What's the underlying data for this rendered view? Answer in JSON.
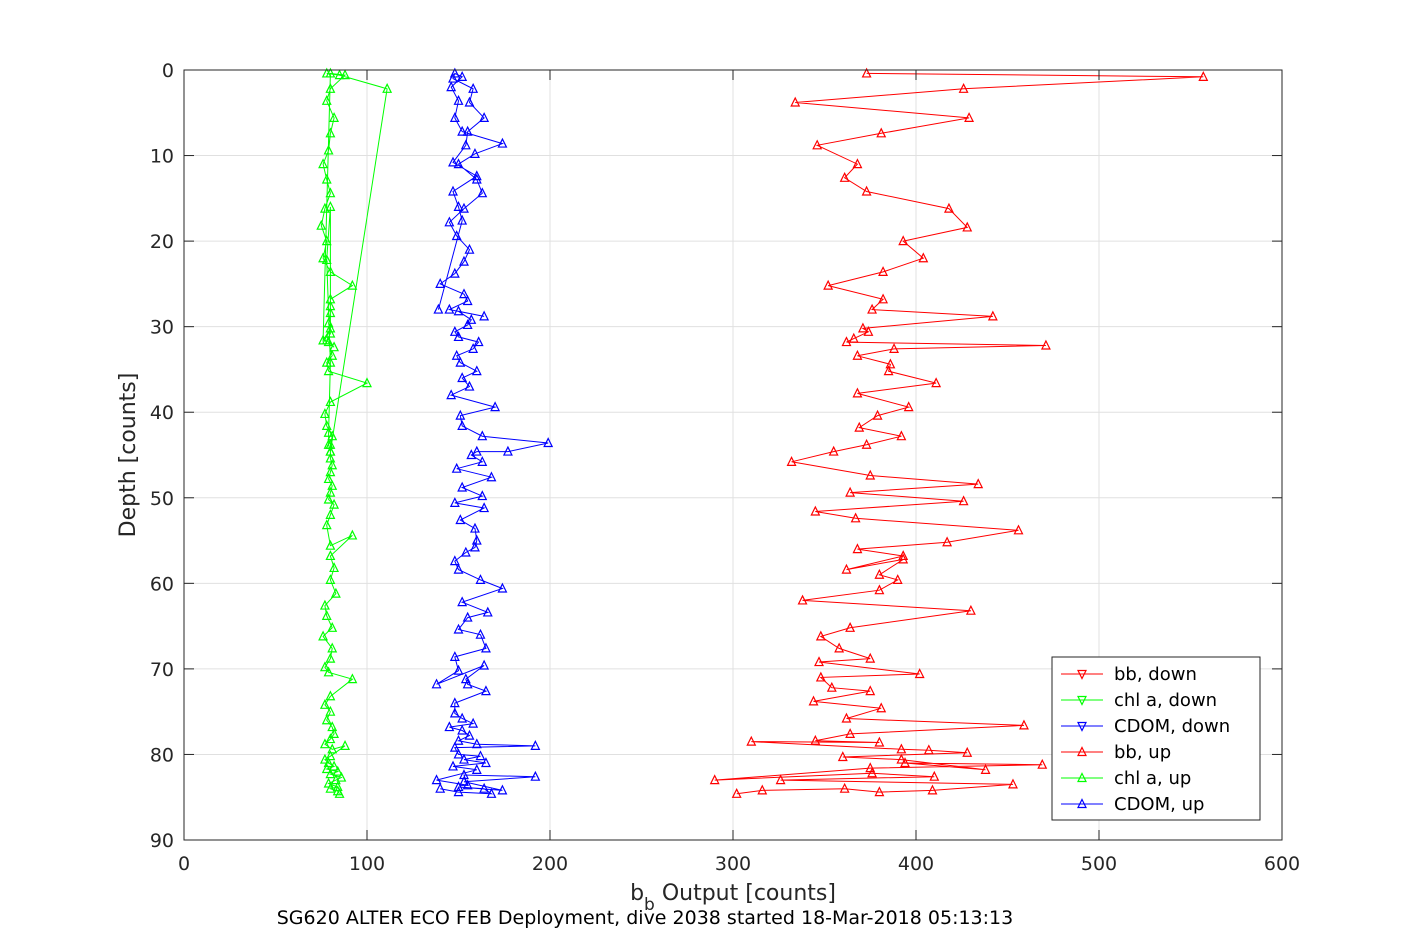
{
  "chart_data": {
    "type": "line",
    "title": "",
    "xlabel": "b_b Output [counts]",
    "xlabel_main": "b",
    "xlabel_sub": "b",
    "xlabel_rest": " Output [counts]",
    "ylabel": "Depth [counts]",
    "caption": "SG620 ALTER ECO FEB Deployment, dive 2038 started 18-Mar-2018 05:13:13",
    "xlim": [
      0,
      600
    ],
    "ylim": [
      0,
      90
    ],
    "y_reversed": true,
    "grid": true,
    "legend_position": "bottom-right",
    "xticks": [
      "0",
      "100",
      "200",
      "300",
      "400",
      "500",
      "600"
    ],
    "yticks": [
      "0",
      "10",
      "20",
      "30",
      "40",
      "50",
      "60",
      "70",
      "80",
      "90"
    ],
    "series": [
      {
        "name": "bb, down",
        "color": "#ff0000",
        "marker": "triangle-down",
        "x": [],
        "y": []
      },
      {
        "name": "chl a, down",
        "color": "#00ff00",
        "marker": "triangle-down",
        "x": [],
        "y": []
      },
      {
        "name": "CDOM, down",
        "color": "#0000ff",
        "marker": "triangle-down",
        "x": [],
        "y": []
      },
      {
        "name": "bb, up",
        "color": "#ff0000",
        "marker": "triangle-up",
        "x": [
          302,
          316,
          361,
          380,
          409,
          453,
          326,
          410,
          376,
          290,
          375,
          469,
          394,
          438,
          392,
          360,
          428,
          407,
          392,
          310,
          380,
          345,
          364,
          459,
          362,
          381,
          344,
          375,
          354,
          348,
          402,
          347,
          375,
          358,
          348,
          364,
          430,
          338,
          380,
          390,
          380,
          393,
          362,
          393,
          368,
          417,
          456,
          367,
          345,
          426,
          364,
          434,
          375,
          332,
          355,
          373,
          392,
          369,
          379,
          396,
          368,
          411,
          385,
          386,
          368,
          388,
          471,
          362,
          366,
          374,
          371,
          442,
          376,
          382,
          352,
          382,
          404,
          393,
          428,
          418,
          373,
          361,
          368,
          346,
          381,
          429,
          334,
          426,
          557,
          373
        ],
        "y": [
          84.6,
          84.2,
          84.0,
          84.4,
          84.2,
          83.5,
          83.0,
          82.6,
          82.2,
          83.0,
          81.6,
          81.2,
          81.0,
          81.8,
          80.6,
          80.3,
          79.8,
          79.5,
          79.4,
          78.5,
          78.6,
          78.4,
          77.6,
          76.6,
          75.8,
          74.6,
          73.8,
          72.6,
          72.2,
          71.0,
          70.6,
          69.2,
          68.8,
          67.6,
          66.2,
          65.2,
          63.2,
          62.0,
          60.8,
          59.6,
          59.0,
          57.2,
          58.4,
          56.8,
          56.0,
          55.2,
          53.8,
          52.4,
          51.6,
          50.4,
          49.4,
          48.4,
          47.4,
          45.8,
          44.6,
          43.8,
          42.8,
          41.8,
          40.4,
          39.4,
          37.8,
          36.6,
          35.2,
          34.4,
          33.4,
          32.6,
          32.2,
          31.8,
          31.4,
          30.6,
          30.2,
          28.8,
          28.0,
          26.8,
          25.2,
          23.6,
          22.0,
          20.0,
          18.4,
          16.2,
          14.2,
          12.6,
          11.0,
          8.8,
          7.4,
          5.6,
          3.8,
          2.2,
          0.8,
          0.4
        ]
      },
      {
        "name": "chl a, up",
        "color": "#00ff00",
        "marker": "triangle-up",
        "x": [
          85,
          84,
          80,
          84,
          79,
          83,
          86,
          80,
          84,
          78,
          82,
          79,
          77,
          80,
          88,
          81,
          77,
          80,
          82,
          81,
          78,
          80,
          77,
          80,
          92,
          79,
          77,
          80,
          81,
          76,
          81,
          78,
          77,
          83,
          80,
          82,
          80,
          92,
          80,
          78,
          80,
          82,
          79,
          80,
          81,
          79,
          80,
          81,
          80,
          80,
          80,
          81,
          78,
          77,
          80,
          100,
          79,
          78,
          81,
          79,
          82,
          78,
          80,
          79,
          80,
          80,
          80,
          92,
          80,
          76,
          78,
          75,
          77,
          80,
          78,
          76,
          79,
          80,
          82,
          78,
          80,
          88,
          80,
          76,
          80,
          80,
          78,
          80,
          79,
          79,
          80,
          111,
          85,
          78
        ],
        "y": [
          84.6,
          84.3,
          84.0,
          83.8,
          83.4,
          83.0,
          82.7,
          82.3,
          82.0,
          81.7,
          81.4,
          81.0,
          80.6,
          80.2,
          79.0,
          79.4,
          78.8,
          78.2,
          77.6,
          76.8,
          76.0,
          75.0,
          74.2,
          73.2,
          71.2,
          70.4,
          69.8,
          68.8,
          67.6,
          66.2,
          65.2,
          63.8,
          62.6,
          61.2,
          59.6,
          58.2,
          56.8,
          54.4,
          55.6,
          53.2,
          52.0,
          50.8,
          50.2,
          49.4,
          48.6,
          47.8,
          47.0,
          46.2,
          45.4,
          44.6,
          43.8,
          42.8,
          41.6,
          40.2,
          38.8,
          36.6,
          35.2,
          34.2,
          33.4,
          31.8,
          32.4,
          31.6,
          30.8,
          29.6,
          28.4,
          27.6,
          26.8,
          25.2,
          23.6,
          22.0,
          20.0,
          18.2,
          16.2,
          14.4,
          12.8,
          11.0,
          9.4,
          7.4,
          5.6,
          3.6,
          2.2,
          0.6,
          0.4,
          31.6,
          30.2,
          16.0,
          22.2,
          34.2,
          42.4,
          43.8,
          44.6,
          2.2,
          0.6,
          0.4
        ],
        "note_unused": ""
      },
      {
        "name": "CDOM, up",
        "color": "#0000ff",
        "marker": "triangle-up",
        "x": [
          140,
          150,
          168,
          164,
          150,
          174,
          153,
          192,
          153,
          155,
          138,
          160,
          147,
          165,
          153,
          162,
          150,
          148,
          192,
          160,
          150,
          156,
          152,
          145,
          158,
          152,
          148,
          148,
          165,
          155,
          154,
          164,
          138,
          150,
          148,
          165,
          162,
          150,
          155,
          166,
          152,
          174,
          162,
          150,
          148,
          154,
          159,
          160,
          159,
          151,
          164,
          148,
          163,
          152,
          168,
          149,
          163,
          157,
          160,
          177,
          199,
          163,
          152,
          151,
          170,
          146,
          156,
          152,
          160,
          151,
          149,
          158,
          161,
          150,
          148,
          155,
          157,
          150,
          164,
          145,
          155,
          153,
          140,
          148,
          153,
          156,
          149,
          145,
          153,
          163,
          160,
          150,
          159,
          174,
          152,
          148,
          150,
          146,
          152,
          148,
          147,
          158,
          156,
          164,
          155,
          154,
          147,
          160,
          147,
          150,
          152,
          139
        ],
        "y": [
          84.0,
          84.4,
          84.6,
          84.0,
          83.8,
          84.2,
          83.2,
          82.6,
          82.4,
          83.6,
          83.0,
          81.8,
          81.4,
          81.0,
          80.6,
          80.2,
          80.0,
          79.2,
          79.0,
          78.8,
          78.4,
          77.8,
          77.2,
          76.8,
          76.4,
          75.8,
          75.2,
          74.0,
          72.6,
          71.8,
          71.2,
          69.6,
          71.8,
          70.2,
          68.6,
          67.6,
          66.0,
          65.4,
          64.0,
          63.4,
          62.2,
          60.6,
          59.6,
          58.4,
          57.4,
          56.4,
          55.8,
          55.0,
          53.6,
          52.6,
          51.2,
          50.6,
          49.8,
          48.8,
          47.6,
          46.6,
          45.8,
          45.0,
          44.6,
          44.6,
          43.6,
          42.8,
          41.6,
          40.4,
          39.4,
          38.0,
          37.0,
          36.0,
          35.2,
          34.2,
          33.4,
          32.6,
          31.8,
          31.2,
          30.6,
          29.8,
          29.2,
          28.2,
          28.8,
          28.0,
          27.0,
          26.2,
          25.0,
          23.8,
          22.4,
          21.0,
          19.4,
          17.8,
          16.2,
          14.4,
          12.8,
          11.0,
          9.8,
          8.6,
          7.2,
          5.6,
          3.6,
          2.0,
          0.8,
          0.4,
          1.0,
          2.2,
          3.8,
          5.6,
          7.2,
          8.8,
          10.8,
          12.4,
          14.2,
          16.0,
          17.6,
          28.0
        ],
        "note_unused": ""
      }
    ]
  }
}
